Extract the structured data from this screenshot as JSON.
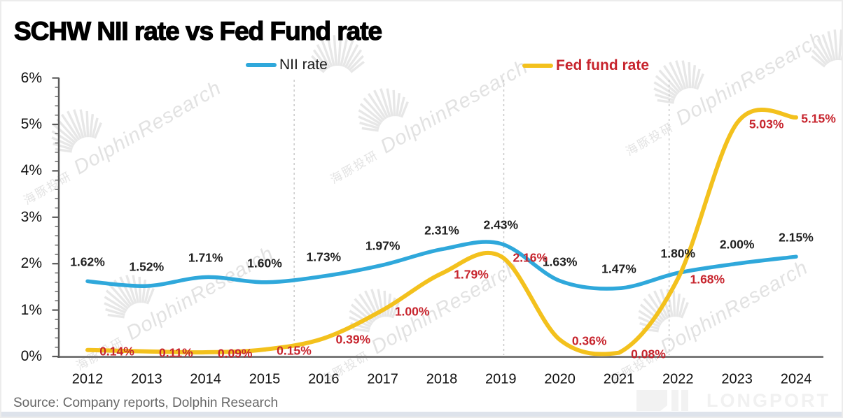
{
  "title": "SCHW NII rate vs Fed Fund rate",
  "legend": {
    "items": [
      {
        "label": "NII rate",
        "swatch_color": "#2fa8db",
        "text_color": "#1a1a1a"
      },
      {
        "label": "Fed fund rate",
        "swatch_color": "#f3c11d",
        "text_color": "#c7242d"
      }
    ]
  },
  "axes": {
    "y_ticks": [
      "0%",
      "1%",
      "2%",
      "3%",
      "4%",
      "5%",
      "6%"
    ],
    "x_ticks": [
      "2012",
      "2013",
      "2014",
      "2015",
      "2016",
      "2017",
      "2018",
      "2019",
      "2020",
      "2021",
      "2022",
      "2023",
      "2024"
    ]
  },
  "chart_data": {
    "type": "line",
    "x": [
      2012,
      2013,
      2014,
      2015,
      2016,
      2017,
      2018,
      2019,
      2020,
      2021,
      2022,
      2023,
      2024
    ],
    "series": [
      {
        "name": "NII rate",
        "color": "#2fa8db",
        "label_color": "#1f1f1f",
        "values": [
          1.62,
          1.52,
          1.71,
          1.6,
          1.73,
          1.97,
          2.31,
          2.43,
          1.63,
          1.47,
          1.8,
          2.0,
          2.15
        ],
        "labels": [
          "1.62%",
          "1.52%",
          "1.71%",
          "1.60%",
          "1.73%",
          "1.97%",
          "2.31%",
          "2.43%",
          "1.63%",
          "1.47%",
          "1.80%",
          "2.00%",
          "2.15%"
        ]
      },
      {
        "name": "Fed fund rate",
        "color": "#f3c11d",
        "label_color": "#c7242d",
        "values": [
          0.14,
          0.11,
          0.09,
          0.15,
          0.39,
          1.0,
          1.79,
          2.16,
          0.36,
          0.08,
          1.68,
          5.03,
          5.15
        ],
        "labels": [
          "0.14%",
          "0.11%",
          "0.09%",
          "0.15%",
          "0.39%",
          "1.00%",
          "1.79%",
          "2.16%",
          "0.36%",
          "0.08%",
          "1.68%",
          "5.03%",
          "5.15%"
        ]
      }
    ],
    "ylim": [
      0,
      6
    ],
    "y_tick_step": 1,
    "y_minor_tick_step": 0.2,
    "dashed_gridlines_x": [
      2015.5,
      2019.05,
      2021.85
    ],
    "legend_position": "top",
    "grid": "off",
    "title": "SCHW NII rate vs Fed Fund rate"
  },
  "source_note": "Source: Company reports, Dolphin Research",
  "watermark": {
    "cn": "海豚投研",
    "en": "DolphinResearch"
  },
  "footer_logo": {
    "text": "LONGPORT"
  }
}
